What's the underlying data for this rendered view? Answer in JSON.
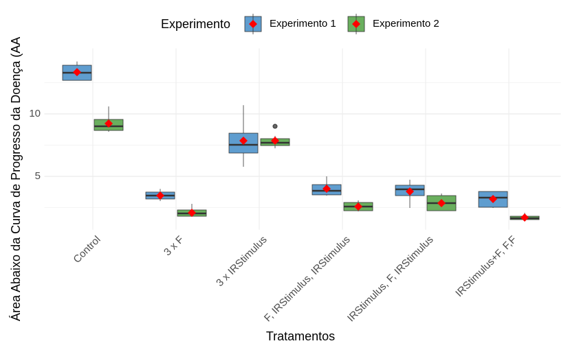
{
  "chart_data": {
    "type": "box",
    "x_label": "Tratamentos",
    "y_label": "Área Abaixo da Curva de Progresso da Doença (AA",
    "legend_title": "Experimento",
    "categories": [
      "Control",
      "3 x F",
      "3 x IRStimulus",
      "F, IRStimulus, IRStimulus",
      "IRStimulus, F, IRStimulus",
      "IRStimulus+F, F,F"
    ],
    "ylim": [
      1,
      14.7
    ],
    "yticks": [
      5,
      10
    ],
    "y_minor_grid": [
      2.5,
      7.5,
      12.5
    ],
    "grid": true,
    "mean_color": "#ff0000",
    "series": [
      {
        "name": "Experimento 1",
        "color": "#5f9dcf",
        "whisker_low": [
          12.7,
          3.02,
          5.77,
          3.46,
          2.47,
          2.47
        ],
        "q1": [
          12.69,
          3.19,
          6.87,
          3.52,
          3.46,
          2.53
        ],
        "median": [
          13.3,
          3.46,
          7.53,
          3.85,
          3.96,
          3.3
        ],
        "q3": [
          13.9,
          3.74,
          8.46,
          4.34,
          4.29,
          3.79
        ],
        "whisker_high": [
          14.2,
          4.0,
          10.7,
          5.0,
          4.73,
          3.79
        ],
        "mean": [
          13.35,
          3.46,
          7.86,
          4.01,
          3.79,
          3.19
        ],
        "outliers": [
          [],
          [],
          [],
          [],
          [],
          []
        ]
      },
      {
        "name": "Experimento 2",
        "color": "#6aaf5e",
        "whisker_low": [
          8.57,
          1.76,
          7.25,
          2.2,
          2.25,
          1.54
        ],
        "q1": [
          8.68,
          1.81,
          7.47,
          2.25,
          2.25,
          1.54
        ],
        "median": [
          9.01,
          2.03,
          7.69,
          2.58,
          2.86,
          1.65
        ],
        "q3": [
          9.56,
          2.31,
          8.02,
          2.91,
          3.46,
          1.81
        ],
        "whisker_high": [
          10.6,
          2.8,
          8.24,
          3.08,
          3.63,
          2.09
        ],
        "mean": [
          9.23,
          2.09,
          7.86,
          2.58,
          2.86,
          1.7
        ],
        "outliers": [
          [],
          [],
          [
            9.01
          ],
          [],
          [],
          []
        ]
      }
    ]
  }
}
